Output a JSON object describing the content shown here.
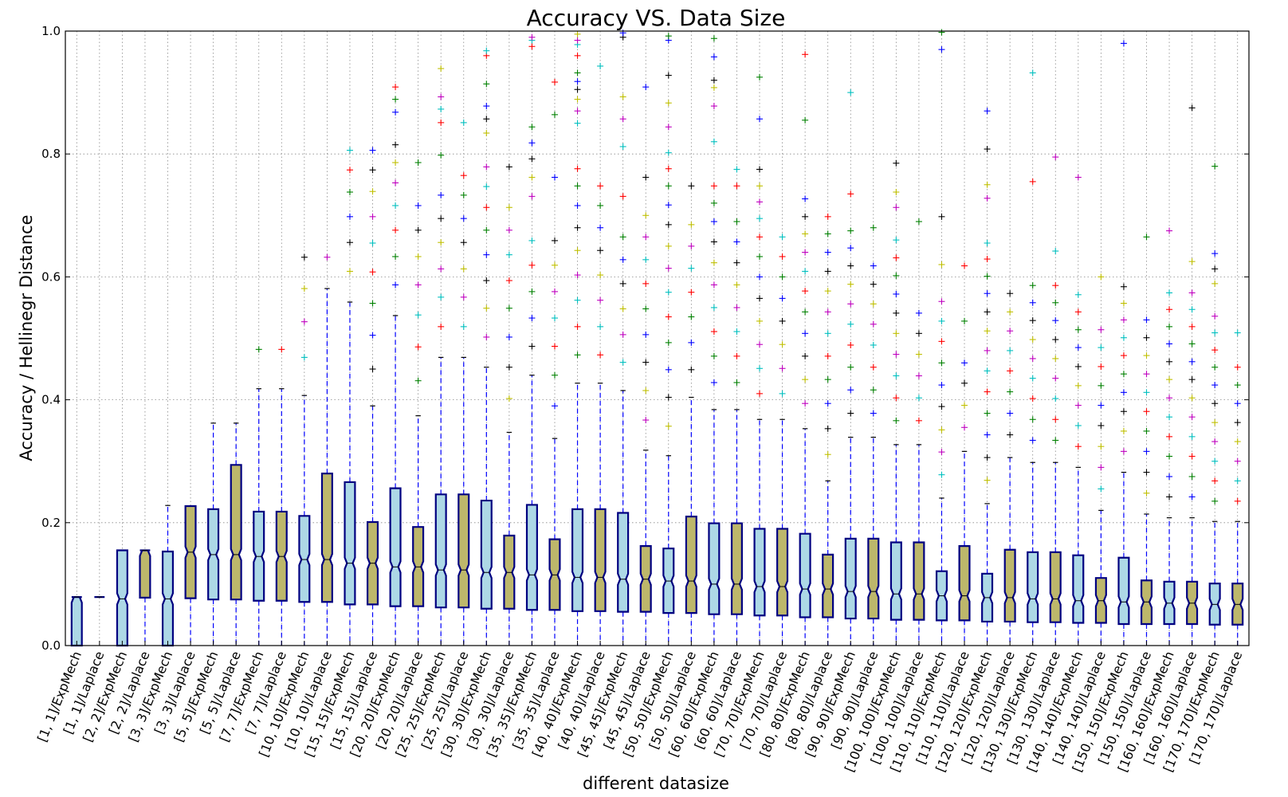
{
  "chart_data": {
    "type": "box",
    "title": "Accuracy VS. Data Size",
    "xlabel": "different datasize",
    "ylabel": "Accuracy / Hellinegr Distance",
    "ylim": [
      0.0,
      1.0
    ],
    "yticks": [
      "0.0",
      "0.2",
      "0.4",
      "0.6",
      "0.8",
      "1.0"
    ],
    "grid": true,
    "notched": true,
    "colors": {
      "ExpMech": "#add8e6",
      "Laplace": "#bdb76b",
      "box_edge": "#000080",
      "whisker": "#0000ff",
      "grid": "#888888"
    },
    "flier_colors": [
      "#0000ff",
      "#008000",
      "#ff0000",
      "#00bfbf",
      "#bf00bf",
      "#bfbf00",
      "#000000"
    ],
    "categories": [
      "[1, 1]/ExpMech",
      "[1, 1]/Laplace",
      "[2, 2]/ExpMech",
      "[2, 2]/Laplace",
      "[3, 3]/ExpMech",
      "[3, 3]/Laplace",
      "[5, 5]/ExpMech",
      "[5, 5]/Laplace",
      "[7, 7]/ExpMech",
      "[7, 7]/Laplace",
      "[10, 10]/ExpMech",
      "[10, 10]/Laplace",
      "[15, 15]/ExpMech",
      "[15, 15]/Laplace",
      "[20, 20]/ExpMech",
      "[20, 20]/Laplace",
      "[25, 25]/ExpMech",
      "[25, 25]/Laplace",
      "[30, 30]/ExpMech",
      "[30, 30]/Laplace",
      "[35, 35]/ExpMech",
      "[35, 35]/Laplace",
      "[40, 40]/ExpMech",
      "[40, 40]/Laplace",
      "[45, 45]/ExpMech",
      "[45, 45]/Laplace",
      "[50, 50]/ExpMech",
      "[50, 50]/Laplace",
      "[60, 60]/ExpMech",
      "[60, 60]/Laplace",
      "[70, 70]/ExpMech",
      "[70, 70]/Laplace",
      "[80, 80]/ExpMech",
      "[80, 80]/Laplace",
      "[90, 90]/ExpMech",
      "[90, 90]/Laplace",
      "[100, 100]/ExpMech",
      "[100, 100]/Laplace",
      "[110, 110]/ExpMech",
      "[110, 110]/Laplace",
      "[120, 120]/ExpMech",
      "[120, 120]/Laplace",
      "[130, 130]/ExpMech",
      "[130, 130]/Laplace",
      "[140, 140]/ExpMech",
      "[140, 140]/Laplace",
      "[150, 150]/ExpMech",
      "[150, 150]/Laplace",
      "[160, 160]/ExpMech",
      "[160, 160]/Laplace",
      "[170, 170]/ExpMech",
      "[170, 170]/Laplace"
    ],
    "boxes": [
      {
        "q1": 0.0,
        "med": 0.079,
        "q3": 0.079,
        "wlo": 0.0,
        "whi": 0.079,
        "fliers": []
      },
      {
        "q1": 0.079,
        "med": 0.079,
        "q3": 0.079,
        "wlo": 0.079,
        "whi": 0.079,
        "fliers": []
      },
      {
        "q1": 0.0,
        "med": 0.076,
        "q3": 0.155,
        "wlo": 0.0,
        "whi": 0.155,
        "fliers": []
      },
      {
        "q1": 0.078,
        "med": 0.155,
        "q3": 0.155,
        "wlo": 0.0,
        "whi": 0.155,
        "fliers": []
      },
      {
        "q1": 0.0,
        "med": 0.076,
        "q3": 0.153,
        "wlo": 0.0,
        "whi": 0.228,
        "fliers": []
      },
      {
        "q1": 0.077,
        "med": 0.152,
        "q3": 0.227,
        "wlo": 0.0,
        "whi": 0.227,
        "fliers": []
      },
      {
        "q1": 0.075,
        "med": 0.148,
        "q3": 0.222,
        "wlo": 0.0,
        "whi": 0.362,
        "fliers": []
      },
      {
        "q1": 0.075,
        "med": 0.148,
        "q3": 0.294,
        "wlo": 0.0,
        "whi": 0.362,
        "fliers": []
      },
      {
        "q1": 0.073,
        "med": 0.145,
        "q3": 0.218,
        "wlo": 0.0,
        "whi": 0.418,
        "fliers": [
          0.482
        ]
      },
      {
        "q1": 0.073,
        "med": 0.145,
        "q3": 0.218,
        "wlo": 0.0,
        "whi": 0.418,
        "fliers": [
          0.482
        ]
      },
      {
        "q1": 0.071,
        "med": 0.14,
        "q3": 0.211,
        "wlo": 0.0,
        "whi": 0.407,
        "fliers": [
          0.469,
          0.527,
          0.581,
          0.632
        ]
      },
      {
        "q1": 0.071,
        "med": 0.14,
        "q3": 0.28,
        "wlo": 0.0,
        "whi": 0.581,
        "fliers": [
          0.632
        ]
      },
      {
        "q1": 0.067,
        "med": 0.134,
        "q3": 0.266,
        "wlo": 0.0,
        "whi": 0.559,
        "fliers": [
          0.609,
          0.656,
          0.698,
          0.738,
          0.774,
          0.806
        ]
      },
      {
        "q1": 0.067,
        "med": 0.134,
        "q3": 0.201,
        "wlo": 0.0,
        "whi": 0.39,
        "fliers": [
          0.45,
          0.505,
          0.557,
          0.608,
          0.655,
          0.698,
          0.739,
          0.774,
          0.806
        ]
      },
      {
        "q1": 0.064,
        "med": 0.128,
        "q3": 0.256,
        "wlo": 0.0,
        "whi": 0.537,
        "fliers": [
          0.587,
          0.633,
          0.676,
          0.716,
          0.753,
          0.786,
          0.815,
          0.868,
          0.889,
          0.909
        ]
      },
      {
        "q1": 0.064,
        "med": 0.128,
        "q3": 0.193,
        "wlo": 0.0,
        "whi": 0.374,
        "fliers": [
          0.431,
          0.486,
          0.538,
          0.587,
          0.633,
          0.676,
          0.716,
          0.786
        ]
      },
      {
        "q1": 0.062,
        "med": 0.123,
        "q3": 0.246,
        "wlo": 0.0,
        "whi": 0.469,
        "fliers": [
          0.519,
          0.567,
          0.613,
          0.656,
          0.695,
          0.733,
          0.798,
          0.851,
          0.873,
          0.893,
          0.939
        ]
      },
      {
        "q1": 0.062,
        "med": 0.123,
        "q3": 0.246,
        "wlo": 0.0,
        "whi": 0.469,
        "fliers": [
          0.519,
          0.567,
          0.613,
          0.656,
          0.695,
          0.733,
          0.765,
          0.851
        ]
      },
      {
        "q1": 0.06,
        "med": 0.119,
        "q3": 0.236,
        "wlo": 0.0,
        "whi": 0.453,
        "fliers": [
          0.502,
          0.549,
          0.594,
          0.636,
          0.676,
          0.713,
          0.747,
          0.779,
          0.834,
          0.857,
          0.878,
          0.914,
          0.96,
          0.968
        ]
      },
      {
        "q1": 0.06,
        "med": 0.119,
        "q3": 0.179,
        "wlo": 0.0,
        "whi": 0.347,
        "fliers": [
          0.402,
          0.453,
          0.502,
          0.549,
          0.594,
          0.636,
          0.676,
          0.713,
          0.779
        ]
      },
      {
        "q1": 0.058,
        "med": 0.115,
        "q3": 0.229,
        "wlo": 0.0,
        "whi": 0.44,
        "fliers": [
          0.487,
          0.533,
          0.576,
          0.619,
          0.659,
          0.731,
          0.762,
          0.792,
          0.818,
          0.844,
          0.975,
          0.985,
          0.99
        ]
      },
      {
        "q1": 0.058,
        "med": 0.115,
        "q3": 0.173,
        "wlo": 0.0,
        "whi": 0.337,
        "fliers": [
          0.39,
          0.44,
          0.487,
          0.533,
          0.576,
          0.619,
          0.659,
          0.762,
          0.864,
          0.917
        ]
      },
      {
        "q1": 0.056,
        "med": 0.111,
        "q3": 0.222,
        "wlo": 0.0,
        "whi": 0.427,
        "fliers": [
          0.473,
          0.519,
          0.562,
          0.603,
          0.643,
          0.68,
          0.716,
          0.748,
          0.776,
          0.85,
          0.87,
          0.889,
          0.905,
          0.918,
          0.932,
          0.96,
          0.978,
          0.985,
          0.995
        ]
      },
      {
        "q1": 0.056,
        "med": 0.111,
        "q3": 0.222,
        "wlo": 0.0,
        "whi": 0.427,
        "fliers": [
          0.473,
          0.519,
          0.562,
          0.603,
          0.643,
          0.68,
          0.716,
          0.748,
          0.943
        ]
      },
      {
        "q1": 0.055,
        "med": 0.108,
        "q3": 0.216,
        "wlo": 0.0,
        "whi": 0.415,
        "fliers": [
          0.461,
          0.506,
          0.548,
          0.589,
          0.628,
          0.665,
          0.731,
          0.812,
          0.857,
          0.893,
          0.99,
          0.997
        ]
      },
      {
        "q1": 0.055,
        "med": 0.108,
        "q3": 0.162,
        "wlo": 0.0,
        "whi": 0.318,
        "fliers": [
          0.367,
          0.415,
          0.461,
          0.506,
          0.548,
          0.589,
          0.628,
          0.665,
          0.7,
          0.762,
          0.909
        ]
      },
      {
        "q1": 0.053,
        "med": 0.105,
        "q3": 0.158,
        "wlo": 0.0,
        "whi": 0.309,
        "fliers": [
          0.357,
          0.404,
          0.449,
          0.493,
          0.535,
          0.575,
          0.614,
          0.65,
          0.685,
          0.717,
          0.748,
          0.776,
          0.802,
          0.844,
          0.883,
          0.928,
          0.985,
          0.992
        ]
      },
      {
        "q1": 0.053,
        "med": 0.105,
        "q3": 0.21,
        "wlo": 0.0,
        "whi": 0.404,
        "fliers": [
          0.449,
          0.493,
          0.535,
          0.575,
          0.614,
          0.65,
          0.685,
          0.748
        ]
      },
      {
        "q1": 0.051,
        "med": 0.1,
        "q3": 0.199,
        "wlo": 0.0,
        "whi": 0.384,
        "fliers": [
          0.428,
          0.471,
          0.511,
          0.55,
          0.587,
          0.623,
          0.657,
          0.69,
          0.72,
          0.748,
          0.82,
          0.878,
          0.908,
          0.92,
          0.958,
          0.988
        ]
      },
      {
        "q1": 0.051,
        "med": 0.1,
        "q3": 0.199,
        "wlo": 0.0,
        "whi": 0.384,
        "fliers": [
          0.428,
          0.471,
          0.511,
          0.55,
          0.587,
          0.623,
          0.657,
          0.69,
          0.748,
          0.775
        ]
      },
      {
        "q1": 0.049,
        "med": 0.096,
        "q3": 0.19,
        "wlo": 0.0,
        "whi": 0.368,
        "fliers": [
          0.41,
          0.451,
          0.49,
          0.528,
          0.565,
          0.6,
          0.633,
          0.665,
          0.695,
          0.722,
          0.748,
          0.775,
          0.857,
          0.925
        ]
      },
      {
        "q1": 0.049,
        "med": 0.096,
        "q3": 0.19,
        "wlo": 0.0,
        "whi": 0.368,
        "fliers": [
          0.41,
          0.451,
          0.49,
          0.528,
          0.565,
          0.6,
          0.633,
          0.665
        ]
      },
      {
        "q1": 0.046,
        "med": 0.092,
        "q3": 0.182,
        "wlo": 0.0,
        "whi": 0.353,
        "fliers": [
          0.394,
          0.433,
          0.471,
          0.508,
          0.543,
          0.577,
          0.609,
          0.64,
          0.67,
          0.698,
          0.727,
          0.855,
          0.962
        ]
      },
      {
        "q1": 0.046,
        "med": 0.092,
        "q3": 0.148,
        "wlo": 0.0,
        "whi": 0.268,
        "fliers": [
          0.311,
          0.353,
          0.394,
          0.433,
          0.471,
          0.508,
          0.543,
          0.577,
          0.609,
          0.64,
          0.67,
          0.698
        ]
      },
      {
        "q1": 0.044,
        "med": 0.088,
        "q3": 0.174,
        "wlo": 0.0,
        "whi": 0.339,
        "fliers": [
          0.378,
          0.416,
          0.453,
          0.489,
          0.523,
          0.556,
          0.588,
          0.618,
          0.647,
          0.675,
          0.735,
          0.9
        ]
      },
      {
        "q1": 0.044,
        "med": 0.088,
        "q3": 0.174,
        "wlo": 0.0,
        "whi": 0.339,
        "fliers": [
          0.378,
          0.416,
          0.453,
          0.489,
          0.523,
          0.556,
          0.588,
          0.618,
          0.68
        ]
      },
      {
        "q1": 0.042,
        "med": 0.084,
        "q3": 0.168,
        "wlo": 0.0,
        "whi": 0.327,
        "fliers": [
          0.366,
          0.403,
          0.439,
          0.474,
          0.508,
          0.541,
          0.572,
          0.602,
          0.631,
          0.66,
          0.713,
          0.738,
          0.785
        ]
      },
      {
        "q1": 0.042,
        "med": 0.084,
        "q3": 0.168,
        "wlo": 0.0,
        "whi": 0.327,
        "fliers": [
          0.366,
          0.403,
          0.439,
          0.474,
          0.508,
          0.541,
          0.69
        ]
      },
      {
        "q1": 0.041,
        "med": 0.081,
        "q3": 0.121,
        "wlo": 0.0,
        "whi": 0.24,
        "fliers": [
          0.278,
          0.315,
          0.351,
          0.389,
          0.424,
          0.46,
          0.495,
          0.528,
          0.56,
          0.62,
          0.698,
          0.97,
          0.998
        ]
      },
      {
        "q1": 0.041,
        "med": 0.081,
        "q3": 0.162,
        "wlo": 0.0,
        "whi": 0.316,
        "fliers": [
          0.355,
          0.391,
          0.427,
          0.46,
          0.528,
          0.618
        ]
      },
      {
        "q1": 0.039,
        "med": 0.078,
        "q3": 0.117,
        "wlo": 0.0,
        "whi": 0.231,
        "fliers": [
          0.269,
          0.306,
          0.343,
          0.378,
          0.413,
          0.447,
          0.48,
          0.512,
          0.543,
          0.573,
          0.601,
          0.629,
          0.655,
          0.728,
          0.75,
          0.808,
          0.87
        ]
      },
      {
        "q1": 0.039,
        "med": 0.078,
        "q3": 0.156,
        "wlo": 0.0,
        "whi": 0.306,
        "fliers": [
          0.343,
          0.378,
          0.413,
          0.447,
          0.48,
          0.512,
          0.543,
          0.573
        ]
      },
      {
        "q1": 0.038,
        "med": 0.076,
        "q3": 0.152,
        "wlo": 0.0,
        "whi": 0.298,
        "fliers": [
          0.334,
          0.368,
          0.402,
          0.435,
          0.467,
          0.498,
          0.529,
          0.558,
          0.586,
          0.755,
          0.932
        ]
      },
      {
        "q1": 0.038,
        "med": 0.076,
        "q3": 0.152,
        "wlo": 0.0,
        "whi": 0.298,
        "fliers": [
          0.334,
          0.368,
          0.402,
          0.435,
          0.467,
          0.498,
          0.529,
          0.558,
          0.586,
          0.642,
          0.795
        ]
      },
      {
        "q1": 0.037,
        "med": 0.073,
        "q3": 0.147,
        "wlo": 0.0,
        "whi": 0.29,
        "fliers": [
          0.324,
          0.358,
          0.391,
          0.423,
          0.454,
          0.485,
          0.514,
          0.543,
          0.571,
          0.762
        ]
      },
      {
        "q1": 0.037,
        "med": 0.073,
        "q3": 0.11,
        "wlo": 0.0,
        "whi": 0.22,
        "fliers": [
          0.255,
          0.29,
          0.324,
          0.358,
          0.391,
          0.423,
          0.454,
          0.485,
          0.514,
          0.6
        ]
      },
      {
        "q1": 0.035,
        "med": 0.071,
        "q3": 0.143,
        "wlo": 0.0,
        "whi": 0.282,
        "fliers": [
          0.316,
          0.349,
          0.381,
          0.412,
          0.442,
          0.472,
          0.501,
          0.53,
          0.557,
          0.584,
          0.98
        ]
      },
      {
        "q1": 0.035,
        "med": 0.071,
        "q3": 0.106,
        "wlo": 0.0,
        "whi": 0.214,
        "fliers": [
          0.248,
          0.282,
          0.316,
          0.349,
          0.381,
          0.412,
          0.442,
          0.472,
          0.501,
          0.53,
          0.665
        ]
      },
      {
        "q1": 0.035,
        "med": 0.069,
        "q3": 0.104,
        "wlo": 0.0,
        "whi": 0.208,
        "fliers": [
          0.242,
          0.275,
          0.308,
          0.34,
          0.372,
          0.403,
          0.433,
          0.462,
          0.491,
          0.519,
          0.547,
          0.574,
          0.675
        ]
      },
      {
        "q1": 0.035,
        "med": 0.069,
        "q3": 0.104,
        "wlo": 0.0,
        "whi": 0.208,
        "fliers": [
          0.242,
          0.275,
          0.308,
          0.34,
          0.372,
          0.403,
          0.433,
          0.462,
          0.491,
          0.519,
          0.547,
          0.574,
          0.625,
          0.875
        ]
      },
      {
        "q1": 0.034,
        "med": 0.067,
        "q3": 0.101,
        "wlo": 0.0,
        "whi": 0.202,
        "fliers": [
          0.235,
          0.268,
          0.3,
          0.332,
          0.363,
          0.394,
          0.424,
          0.453,
          0.481,
          0.509,
          0.536,
          0.589,
          0.613,
          0.638,
          0.78
        ]
      },
      {
        "q1": 0.034,
        "med": 0.067,
        "q3": 0.101,
        "wlo": 0.0,
        "whi": 0.202,
        "fliers": [
          0.235,
          0.268,
          0.3,
          0.332,
          0.363,
          0.394,
          0.424,
          0.453,
          0.509
        ]
      }
    ]
  }
}
